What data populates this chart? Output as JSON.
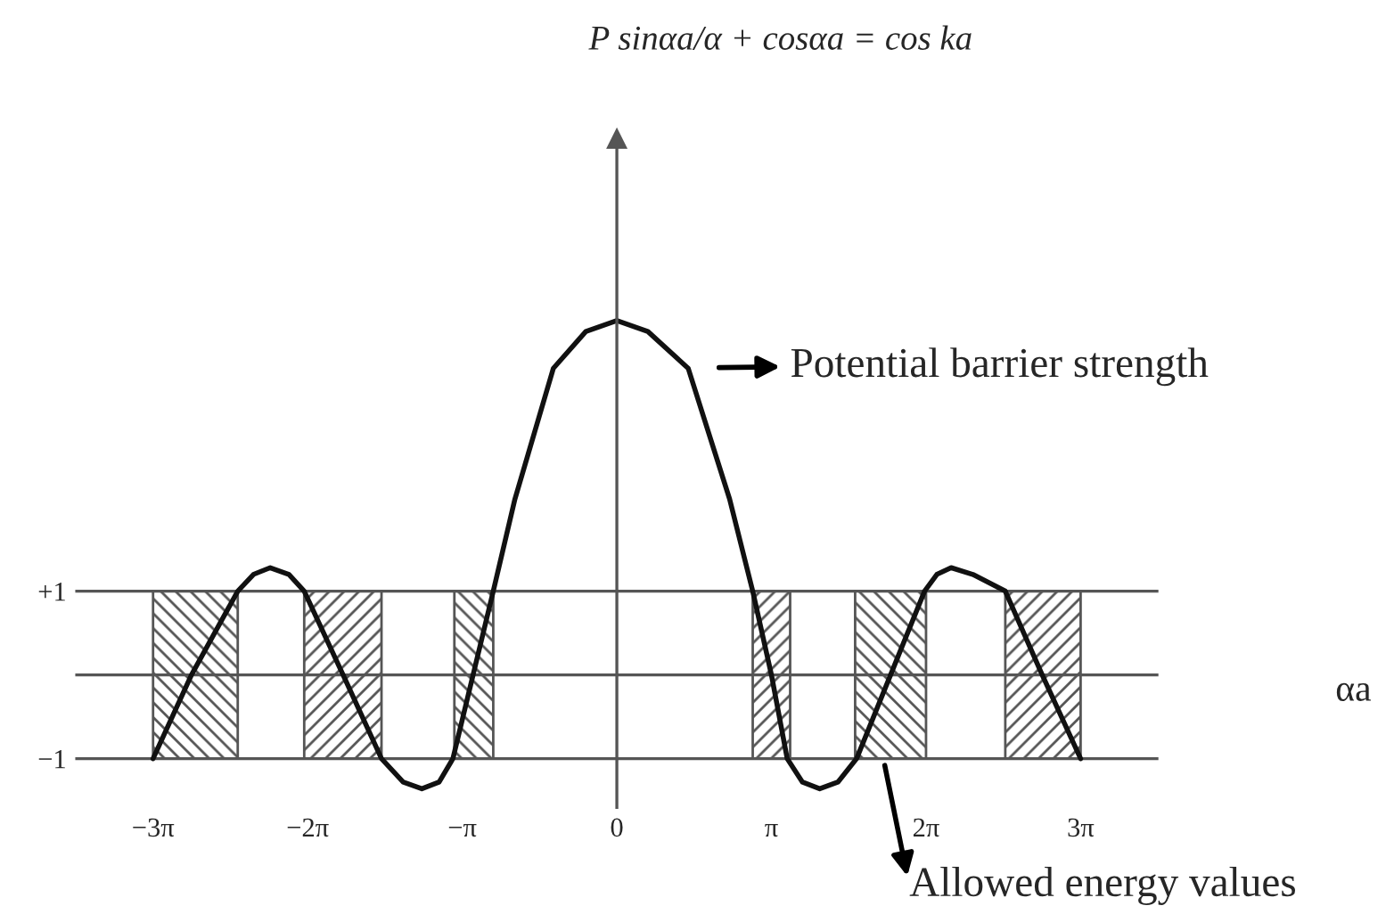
{
  "chart_data": {
    "type": "line",
    "title": "P sinαa/α + cosαa = cos ka",
    "xlabel": "αa",
    "x": [
      -9.42,
      -8.64,
      -7.7,
      -7.38,
      -7.04,
      -6.66,
      -6.35,
      -5.56,
      -4.78,
      -4.34,
      -3.96,
      -3.61,
      -3.33,
      -2.92,
      -2.51,
      -2.07,
      -1.29,
      -0.63,
      0.0,
      0.63,
      1.45,
      2.29,
      2.76,
      3.14,
      3.46,
      3.77,
      4.12,
      4.49,
      4.87,
      5.56,
      6.25,
      6.5,
      6.79,
      7.23,
      7.89,
      8.64,
      9.42
    ],
    "series": [
      {
        "color": "#111111",
        "values": [
          -1,
          0,
          1,
          1.2,
          1.28,
          1.2,
          1,
          0,
          -1,
          -1.28,
          -1.36,
          -1.28,
          -1,
          0,
          1,
          2.1,
          3.66,
          4.1,
          4.23,
          4.1,
          3.66,
          2.1,
          1,
          0,
          -1,
          -1.28,
          -1.36,
          -1.28,
          -1,
          0,
          1,
          1.2,
          1.28,
          1.2,
          1,
          0,
          -1
        ]
      }
    ],
    "xlim": [
      -11.0,
      11.0
    ],
    "ylim": [
      -1.6,
      6.4
    ],
    "xticks": [
      {
        "value": -9.42,
        "label": "−3π"
      },
      {
        "value": -6.28,
        "label": "−2π"
      },
      {
        "value": -3.14,
        "label": "−π"
      },
      0,
      {
        "value": 3.14,
        "label": "π"
      },
      {
        "value": 6.28,
        "label": "2π"
      },
      {
        "value": 9.42,
        "label": "3π"
      }
    ],
    "yticks": [
      {
        "value": -1,
        "label": "−1"
      },
      {
        "value": 0,
        "label": null
      },
      {
        "value": 1,
        "label": "+1"
      }
    ],
    "grid": "y",
    "legend": false,
    "marker": "none",
    "line_style": "solid",
    "ref_lines": [
      {
        "axis": "x",
        "value": 0,
        "color": "#555555"
      }
    ],
    "bands": [
      {
        "axis": "x",
        "from": -9.42,
        "to": -7.7,
        "color": "#555555"
      },
      {
        "axis": "x",
        "from": -6.35,
        "to": -4.78,
        "color": "#555555"
      },
      {
        "axis": "x",
        "from": -3.3,
        "to": -2.51,
        "color": "#555555"
      },
      {
        "axis": "x",
        "from": 2.76,
        "to": 3.52,
        "color": "#555555"
      },
      {
        "axis": "x",
        "from": 4.84,
        "to": 6.28,
        "color": "#555555"
      },
      {
        "axis": "x",
        "from": 7.89,
        "to": 9.42,
        "color": "#555555"
      }
    ],
    "annotations": [
      {
        "text": "Potential barrier strength",
        "x": 1.45,
        "y": 3.66
      },
      {
        "text": "Allowed energy values",
        "x": 5.18,
        "y": -1
      }
    ]
  }
}
